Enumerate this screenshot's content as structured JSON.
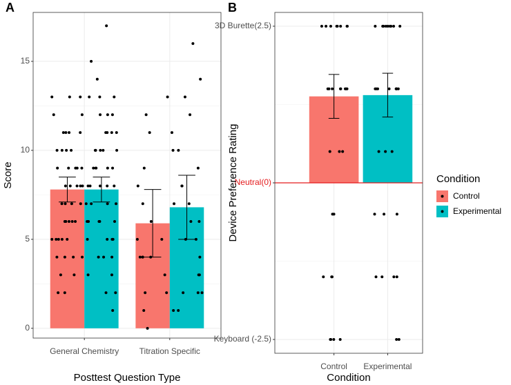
{
  "chart_data": [
    {
      "type": "bar",
      "panel_label": "A",
      "x_label": "Posttest Question Type",
      "y_label": "Score",
      "categories": [
        "General Chemistry",
        "Titration Specific"
      ],
      "series": [
        {
          "name": "Control",
          "color": "#F8766D",
          "values": [
            7.8,
            5.9
          ],
          "errors": [
            0.7,
            1.9
          ],
          "points": [
            [
              13,
              13,
              12,
              11,
              11,
              11,
              10,
              10,
              10,
              9,
              9,
              9,
              9,
              8,
              8,
              8,
              8,
              7,
              7,
              7,
              6,
              6,
              6,
              6,
              5,
              5,
              5,
              5,
              4,
              4,
              4,
              3,
              3,
              2,
              2,
              13,
              12,
              11,
              10,
              9,
              8,
              7,
              6,
              5,
              4
            ],
            [
              13,
              12,
              11,
              9,
              8,
              7,
              5,
              4,
              4,
              4,
              3,
              2,
              2,
              1,
              0,
              6,
              5,
              4
            ]
          ]
        },
        {
          "name": "Experimental",
          "color": "#00BFC4",
          "values": [
            7.8,
            6.8
          ],
          "errors": [
            0.7,
            1.8
          ],
          "points": [
            [
              17,
              15,
              14,
              13,
              13,
              12,
              12,
              11,
              11,
              11,
              10,
              10,
              10,
              10,
              9,
              9,
              9,
              9,
              8,
              8,
              8,
              8,
              7,
              7,
              7,
              6,
              6,
              6,
              6,
              5,
              5,
              5,
              4,
              4,
              4,
              3,
              3,
              2,
              2,
              1,
              13,
              12,
              11,
              10,
              9,
              8,
              7,
              6,
              5
            ],
            [
              16,
              14,
              13,
              12,
              11,
              10,
              9,
              8,
              8,
              7,
              6,
              5,
              5,
              4,
              3,
              3,
              2,
              2,
              2,
              1,
              1,
              6,
              7,
              10
            ]
          ]
        }
      ],
      "ylim": [
        -0.55,
        17.75
      ],
      "yticks": [
        0,
        5,
        10,
        15
      ],
      "grid": true
    },
    {
      "type": "bar",
      "panel_label": "B",
      "x_label": "Condition",
      "y_label": "Device Preference Rating",
      "categories": [
        "Control",
        "Experimental"
      ],
      "values": [
        1.38,
        1.4
      ],
      "errors": [
        0.35,
        0.35
      ],
      "colors": [
        "#F8766D",
        "#00BFC4"
      ],
      "points": [
        [
          2.5,
          2.5,
          2.5,
          2.5,
          2.5,
          2.5,
          2.5,
          2.5,
          1.5,
          1.5,
          1.5,
          1.5,
          1.5,
          1.5,
          1.5,
          1.5,
          0.5,
          0.5,
          0.5,
          -0.5,
          -0.5,
          -1.5,
          -1.5,
          -1.5,
          -2.5,
          -2.5,
          -2.5,
          -2.5
        ],
        [
          2.5,
          2.5,
          2.5,
          2.5,
          2.5,
          2.5,
          2.5,
          2.5,
          2.5,
          1.5,
          1.5,
          1.5,
          1.5,
          1.5,
          1.5,
          1.5,
          1.5,
          0.5,
          0.5,
          0.5,
          -0.5,
          -0.5,
          -0.5,
          -1.5,
          -1.5,
          -1.5,
          -1.5,
          -2.5,
          -2.5
        ]
      ],
      "ylim": [
        -2.72,
        2.72
      ],
      "yticks": [
        {
          "value": -2.5,
          "label": "Keyboard (-2.5)"
        },
        {
          "value": 0,
          "label": "Neutral(0)"
        },
        {
          "value": 2.5,
          "label": "3D Burette(2.5)"
        }
      ],
      "reference_line": 0,
      "reference_color": "#e41a1c",
      "grid": true,
      "legend": {
        "title": "Condition",
        "position": "right"
      }
    }
  ]
}
